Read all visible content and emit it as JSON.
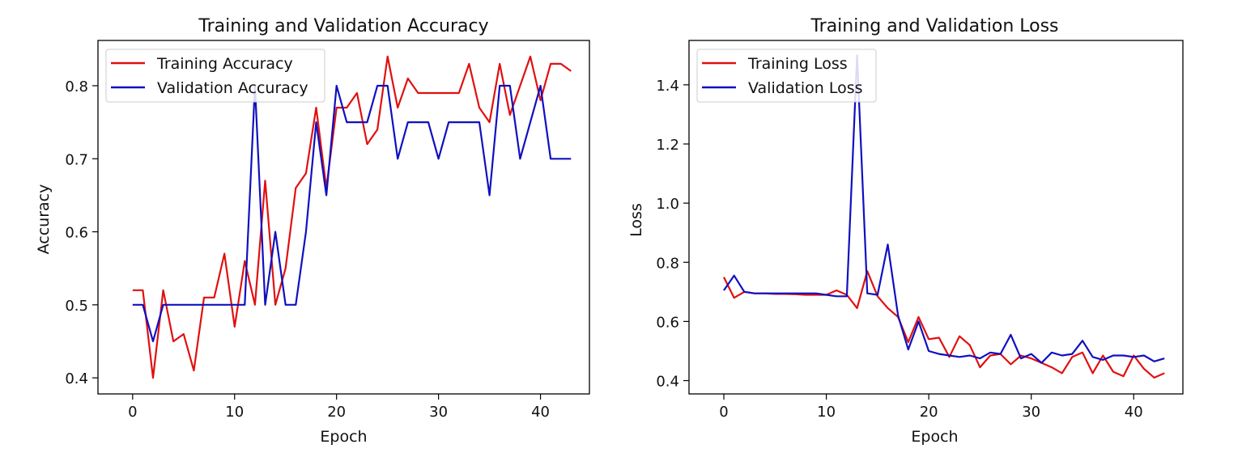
{
  "chart_data": [
    {
      "type": "line",
      "title": "Training and Validation Accuracy",
      "xlabel": "Epoch",
      "ylabel": "Accuracy",
      "xlim": [
        -3.4,
        44.8
      ],
      "ylim": [
        0.378,
        0.862
      ],
      "xticks": [
        0,
        10,
        20,
        30,
        40
      ],
      "yticks": [
        0.4,
        0.5,
        0.6,
        0.7,
        0.8
      ],
      "grid": false,
      "legend_position": "top-left",
      "x": [
        0,
        1,
        2,
        3,
        4,
        5,
        6,
        7,
        8,
        9,
        10,
        11,
        12,
        13,
        14,
        15,
        16,
        17,
        18,
        19,
        20,
        21,
        22,
        23,
        24,
        25,
        26,
        27,
        28,
        29,
        30,
        31,
        32,
        33,
        34,
        35,
        36,
        37,
        38,
        39,
        40,
        41,
        42,
        43
      ],
      "series": [
        {
          "name": "Training Accuracy",
          "color": "#e01010",
          "values": [
            0.52,
            0.52,
            0.4,
            0.52,
            0.45,
            0.46,
            0.41,
            0.51,
            0.51,
            0.57,
            0.47,
            0.56,
            0.5,
            0.67,
            0.5,
            0.55,
            0.66,
            0.68,
            0.77,
            0.66,
            0.77,
            0.77,
            0.79,
            0.72,
            0.74,
            0.84,
            0.77,
            0.81,
            0.79,
            0.79,
            0.79,
            0.79,
            0.79,
            0.83,
            0.77,
            0.75,
            0.83,
            0.76,
            0.8,
            0.84,
            0.78,
            0.83,
            0.83,
            0.82
          ]
        },
        {
          "name": "Validation Accuracy",
          "color": "#1010c0",
          "values": [
            0.5,
            0.5,
            0.45,
            0.5,
            0.5,
            0.5,
            0.5,
            0.5,
            0.5,
            0.5,
            0.5,
            0.5,
            0.8,
            0.5,
            0.6,
            0.5,
            0.5,
            0.6,
            0.75,
            0.65,
            0.8,
            0.75,
            0.75,
            0.75,
            0.8,
            0.8,
            0.7,
            0.75,
            0.75,
            0.75,
            0.7,
            0.75,
            0.75,
            0.75,
            0.75,
            0.65,
            0.8,
            0.8,
            0.7,
            0.75,
            0.8,
            0.7,
            0.7,
            0.7
          ]
        }
      ]
    },
    {
      "type": "line",
      "title": "Training and Validation Loss",
      "xlabel": "Epoch",
      "ylabel": "Loss",
      "xlim": [
        -3.4,
        44.8
      ],
      "ylim": [
        0.355,
        1.55
      ],
      "xticks": [
        0,
        10,
        20,
        30,
        40
      ],
      "yticks": [
        0.4,
        0.6,
        0.8,
        1.0,
        1.2,
        1.4
      ],
      "grid": false,
      "legend_position": "top-left",
      "x": [
        0,
        1,
        2,
        3,
        4,
        5,
        6,
        7,
        8,
        9,
        10,
        11,
        12,
        13,
        14,
        15,
        16,
        17,
        18,
        19,
        20,
        21,
        22,
        23,
        24,
        25,
        26,
        27,
        28,
        29,
        30,
        31,
        32,
        33,
        34,
        35,
        36,
        37,
        38,
        39,
        40,
        41,
        42,
        43
      ],
      "series": [
        {
          "name": "Training Loss",
          "color": "#e01010",
          "values": [
            0.75,
            0.68,
            0.7,
            0.695,
            0.695,
            0.693,
            0.693,
            0.692,
            0.69,
            0.69,
            0.69,
            0.705,
            0.69,
            0.645,
            0.77,
            0.685,
            0.645,
            0.615,
            0.53,
            0.615,
            0.54,
            0.545,
            0.48,
            0.55,
            0.52,
            0.445,
            0.485,
            0.49,
            0.455,
            0.485,
            0.475,
            0.46,
            0.445,
            0.425,
            0.48,
            0.495,
            0.425,
            0.485,
            0.43,
            0.415,
            0.485,
            0.44,
            0.41,
            0.425
          ]
        },
        {
          "name": "Validation Loss",
          "color": "#1010c0",
          "values": [
            0.705,
            0.755,
            0.7,
            0.695,
            0.695,
            0.695,
            0.695,
            0.695,
            0.695,
            0.695,
            0.69,
            0.685,
            0.685,
            1.5,
            0.695,
            0.69,
            0.86,
            0.62,
            0.505,
            0.6,
            0.5,
            0.49,
            0.485,
            0.48,
            0.485,
            0.475,
            0.495,
            0.49,
            0.555,
            0.475,
            0.49,
            0.46,
            0.495,
            0.485,
            0.49,
            0.535,
            0.48,
            0.47,
            0.485,
            0.485,
            0.48,
            0.485,
            0.465,
            0.475
          ]
        }
      ]
    }
  ]
}
